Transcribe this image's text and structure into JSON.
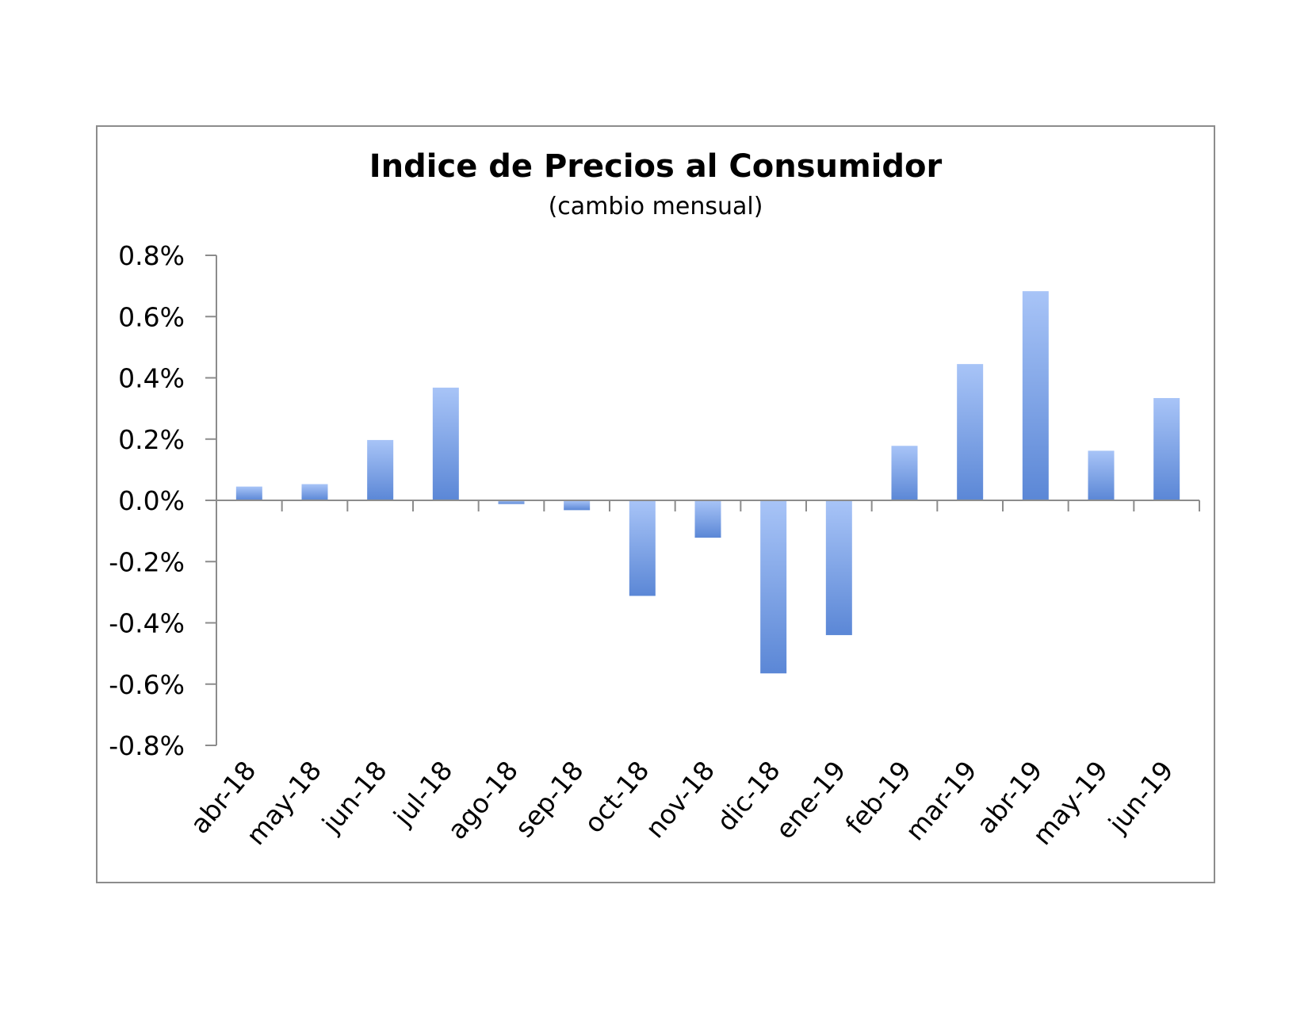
{
  "chart_data": {
    "type": "bar",
    "title": "Indice de Precios al Consumidor",
    "subtitle": "(cambio mensual)",
    "xlabel": "",
    "ylabel": "",
    "categories": [
      "abr-18",
      "may-18",
      "jun-18",
      "jul-18",
      "ago-18",
      "sep-18",
      "oct-18",
      "nov-18",
      "dic-18",
      "ene-19",
      "feb-19",
      "mar-19",
      "abr-19",
      "may-19",
      "jun-19"
    ],
    "values": [
      0.045,
      0.053,
      0.197,
      0.368,
      -0.012,
      -0.032,
      -0.312,
      -0.122,
      -0.565,
      -0.44,
      0.178,
      0.445,
      0.683,
      0.162,
      0.334
    ],
    "value_unit": "%",
    "ylim": [
      -0.8,
      0.8
    ],
    "yticks": [
      0.8,
      0.6,
      0.4,
      0.2,
      0.0,
      -0.2,
      -0.4,
      -0.6,
      -0.8
    ],
    "ytick_labels": [
      "0.8%",
      "0.6%",
      "0.4%",
      "0.2%",
      "0.0%",
      "-0.2%",
      "-0.4%",
      "-0.6%",
      "-0.8%"
    ],
    "grid": false,
    "legend": "none",
    "colors": {
      "bar_top": "#a8c4f7",
      "bar_bottom": "#5b87d6",
      "axis": "#8c8c8c",
      "frame": "#8c8c8c"
    }
  }
}
